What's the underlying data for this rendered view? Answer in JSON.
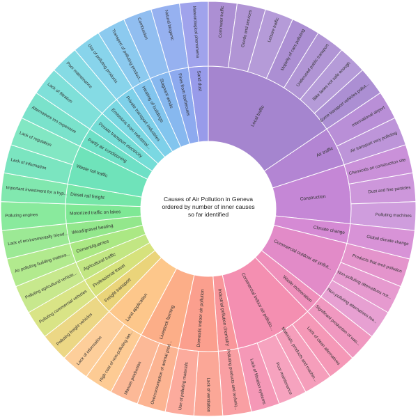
{
  "chart_data": {
    "type": "sunburst",
    "title_lines": [
      "Causes of Air Pollution in Geneva",
      "ordered by number of inner causes",
      "so far identified"
    ],
    "unit_note": "each outer cause counts 1; inner segment value = number of outer causes",
    "groups": [
      {
        "name": "Local traffic",
        "color": "#a585cf",
        "children": [
          "Commuter traffic",
          "Goods and services",
          "Leisure traffic",
          "Majority of cars polluting",
          "Underused public transport",
          "Bike lanes not safe enough",
          "Some transport vehicles pollut..."
        ]
      },
      {
        "name": "Air traffic",
        "color": "#b385d3",
        "children": [
          "International airport",
          "Air transport very polluting"
        ]
      },
      {
        "name": "Construction",
        "color": "#c587d6",
        "children": [
          "Chemicals on construction site",
          "Dust and fine particles",
          "Polluting machines"
        ]
      },
      {
        "name": "Climate change",
        "color": "#d58ad4",
        "children": [
          "Global climate change"
        ]
      },
      {
        "name": "Commercial outdoor air pollut...",
        "color": "#e28bc8",
        "children": [
          "Products that emit pollution",
          "Non-polluting alternatives not...",
          "Non-polluting alternatives too..."
        ]
      },
      {
        "name": "Waste incineration",
        "color": "#ef8fbb",
        "children": [
          "Significant production of was..."
        ]
      },
      {
        "name": "Commercial indoor air pollutio...",
        "color": "#f48fb1",
        "children": [
          "Lack of clean alternatives",
          "Materials, products and machin...",
          "Poor maintenance",
          "Lack of filtration systems"
        ]
      },
      {
        "name": "Industrial pollution chemistry",
        "color": "#f9979b",
        "children": [
          "Polluting products and techniq..."
        ]
      },
      {
        "name": "Domestic indoor air pollution",
        "color": "#fb9f8e",
        "children": [
          "Lack of ventilation",
          "Use of polluting materials"
        ]
      },
      {
        "name": "Livestock farming",
        "color": "#fcae88",
        "children": [
          "Overconsumption of animal prod...",
          "Manure production"
        ]
      },
      {
        "name": "Land application",
        "color": "#fdc78b",
        "children": [
          "High cost of non-polluting lan...",
          "Lack of information"
        ]
      },
      {
        "name": "Freight transport",
        "color": "#ead47a",
        "children": [
          "Polluting freight vehicles"
        ]
      },
      {
        "name": "Professional travel",
        "color": "#d6e27c",
        "children": [
          "Polluting commercial vehicles"
        ]
      },
      {
        "name": "Agricultural traffic",
        "color": "#c2e683",
        "children": [
          "Polluting agricultural vehicle..."
        ]
      },
      {
        "name": "Cement/quarries",
        "color": "#abe884",
        "children": [
          "Air polluting building materia..."
        ]
      },
      {
        "name": "Wood/gravel heating",
        "color": "#93e78c",
        "children": [
          "Lack of environmentally friend..."
        ]
      },
      {
        "name": "Motorized traffic on lakes",
        "color": "#7fe895",
        "children": [
          "Polluting engines"
        ]
      },
      {
        "name": "Diesel rail freight",
        "color": "#76e6a8",
        "children": [
          "Important investment for a hyp..."
        ]
      },
      {
        "name": "Waste rail traffic",
        "color": "#6fe3ba",
        "children": [
          "Lack of information",
          "Lack of regulation"
        ]
      },
      {
        "name": "Partly air conditioning",
        "color": "#6ee0c6",
        "children": [
          "Alternatives too expensive"
        ]
      },
      {
        "name": "Private transport electricity",
        "color": "#74ddd6",
        "children": [
          "Lack of filtration"
        ]
      },
      {
        "name": "Emissions from industrial...",
        "color": "#7ad8e2",
        "children": [
          "Poor maintenance"
        ]
      },
      {
        "name": "Private transport industries",
        "color": "#7ed0e9",
        "children": [
          "Use of polluting products"
        ]
      },
      {
        "name": "Heating of buildings",
        "color": "#82c5ee",
        "children": [
          "Transport of polluting product..."
        ]
      },
      {
        "name": "Stagnant winds",
        "color": "#87b8ef",
        "children": [
          "Combustion"
        ]
      },
      {
        "name": "Fires from barbecues",
        "color": "#8daaef",
        "children": [
          "Natural biogenic"
        ]
      },
      {
        "name": "Sand dust",
        "color": "#989bea",
        "children": [
          "Meteorological phenomena"
        ]
      }
    ]
  }
}
